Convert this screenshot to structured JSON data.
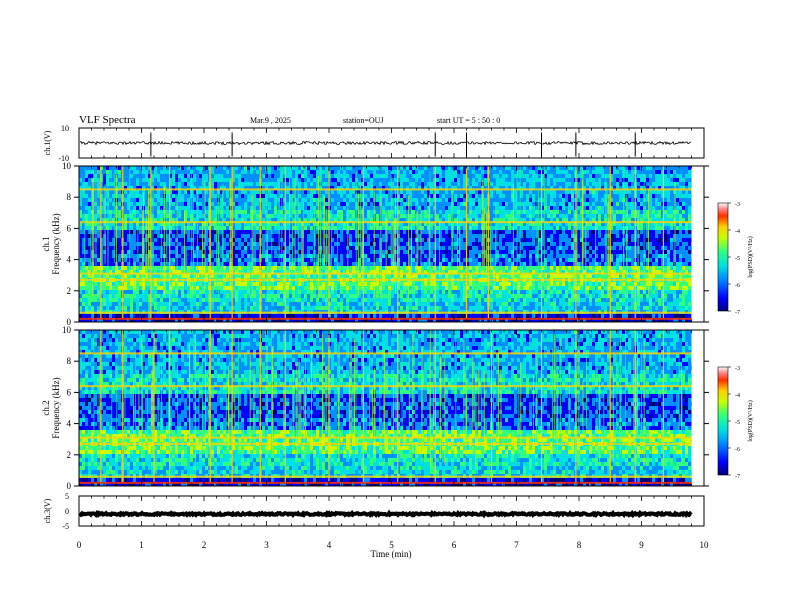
{
  "header": {
    "title": "VLF Spectra",
    "date": "Mar.9 , 2025",
    "station": "station=OUJ",
    "start_ut": "start UT =  5 : 50 : 0"
  },
  "colors": {
    "spectrogram_scale": [
      "#00007a",
      "#0000ff",
      "#0090ff",
      "#00e0e0",
      "#30ff80",
      "#c8ff00",
      "#ffd000",
      "#ff3000",
      "#a00000"
    ],
    "waveform": "#000000"
  },
  "chart_data": [
    {
      "type": "line",
      "panel": "ch1-waveform",
      "ylabel": "ch.1(V)",
      "ylim": [
        -10,
        10
      ],
      "yticks": [
        "10",
        "-10"
      ],
      "xlim": [
        0,
        10
      ],
      "series": [
        {
          "baseline": 0,
          "noise_amplitude": 1,
          "spikes": [
            1.15,
            2.45,
            5.7,
            6.2,
            7.4,
            7.95,
            8.9
          ]
        }
      ]
    },
    {
      "type": "heatmap",
      "panel": "ch1-spectrogram",
      "ylabel": "ch.1\nFrequency (kHz)",
      "ylim": [
        0,
        10
      ],
      "yticks": [
        "0",
        "2",
        "4",
        "6",
        "8",
        "10"
      ],
      "xlim": [
        0,
        10
      ],
      "colorbar": {
        "label": "log(PSD)(V²/Hz)",
        "range": [
          -7,
          -3
        ],
        "ticks": [
          "-3",
          "-4",
          "-5",
          "-6",
          "-7"
        ]
      },
      "data_end_min": 9.8,
      "bands_khz": [
        0.2,
        0.6,
        2.7,
        3.1,
        6.4,
        8.5
      ],
      "sferics_min": [
        0.35,
        0.7,
        1.15,
        1.45,
        2.1,
        2.45,
        2.9,
        3.3,
        4.0,
        4.55,
        5.1,
        5.7,
        6.2,
        6.55,
        7.4,
        7.95,
        8.5,
        8.9,
        9.35
      ]
    },
    {
      "type": "heatmap",
      "panel": "ch2-spectrogram",
      "ylabel": "ch.2\nFrequency (kHz)",
      "ylim": [
        0,
        10
      ],
      "yticks": [
        "0",
        "2",
        "4",
        "6",
        "8",
        "10"
      ],
      "xlim": [
        0,
        10
      ],
      "colorbar": {
        "label": "log(PSD)(V²/Hz)",
        "range": [
          -7,
          -3
        ],
        "ticks": [
          "-3",
          "-4",
          "-5",
          "-6",
          "-7"
        ]
      },
      "data_end_min": 9.8,
      "bands_khz": [
        0.2,
        0.6,
        2.7,
        3.1,
        6.4,
        8.5
      ],
      "sferics_min": [
        0.35,
        0.7,
        1.2,
        1.45,
        2.1,
        2.45,
        2.9,
        3.3,
        4.0,
        4.55,
        5.1,
        5.7,
        6.6,
        7.4,
        7.95,
        8.5,
        8.9,
        9.35
      ]
    },
    {
      "type": "line",
      "panel": "ch3-waveform",
      "ylabel": "ch.3(V)",
      "ylim": [
        -5,
        5
      ],
      "yticks": [
        "5",
        "0",
        "-5"
      ],
      "xlim": [
        0,
        10
      ],
      "series": [
        {
          "baseline": -1,
          "noise_amplitude": 0.3
        }
      ]
    }
  ],
  "xaxis": {
    "label": "Time (min)",
    "ticks": [
      "0",
      "1",
      "2",
      "3",
      "4",
      "5",
      "6",
      "7",
      "8",
      "9",
      "10"
    ]
  }
}
